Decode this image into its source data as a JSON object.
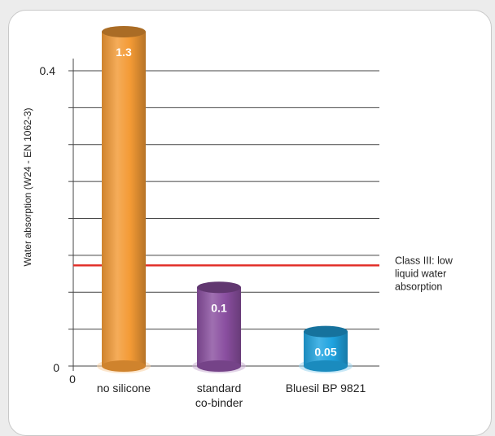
{
  "chart_data": {
    "type": "bar",
    "style": "3d-cylinder",
    "ylabel": "Water absorption (W24 - EN 1062-3)",
    "y_ticks": [
      "0",
      "0.4"
    ],
    "x_origin_label": "0",
    "categories": [
      {
        "label_lines": [
          "no silicone"
        ]
      },
      {
        "label_lines": [
          "standard",
          "co-binder"
        ]
      },
      {
        "label_lines": [
          "Bluesil BP 9821"
        ]
      }
    ],
    "values": [
      1.3,
      0.1,
      0.05
    ],
    "value_labels": [
      "1.3",
      "0.1",
      "0.05"
    ],
    "bar_colors": [
      "#f39a35",
      "#8a4fa0",
      "#1fa3e0"
    ],
    "axis_segments": [
      0,
      0.05,
      0.1,
      0.15,
      0.2,
      0.25,
      0.3,
      0.35,
      0.4
    ],
    "threshold": {
      "value": 0.1,
      "color": "#e2312b",
      "label_lines": [
        "Class III: low",
        "liquid water",
        "absorption"
      ]
    },
    "grid": true,
    "broken_axis": true
  }
}
